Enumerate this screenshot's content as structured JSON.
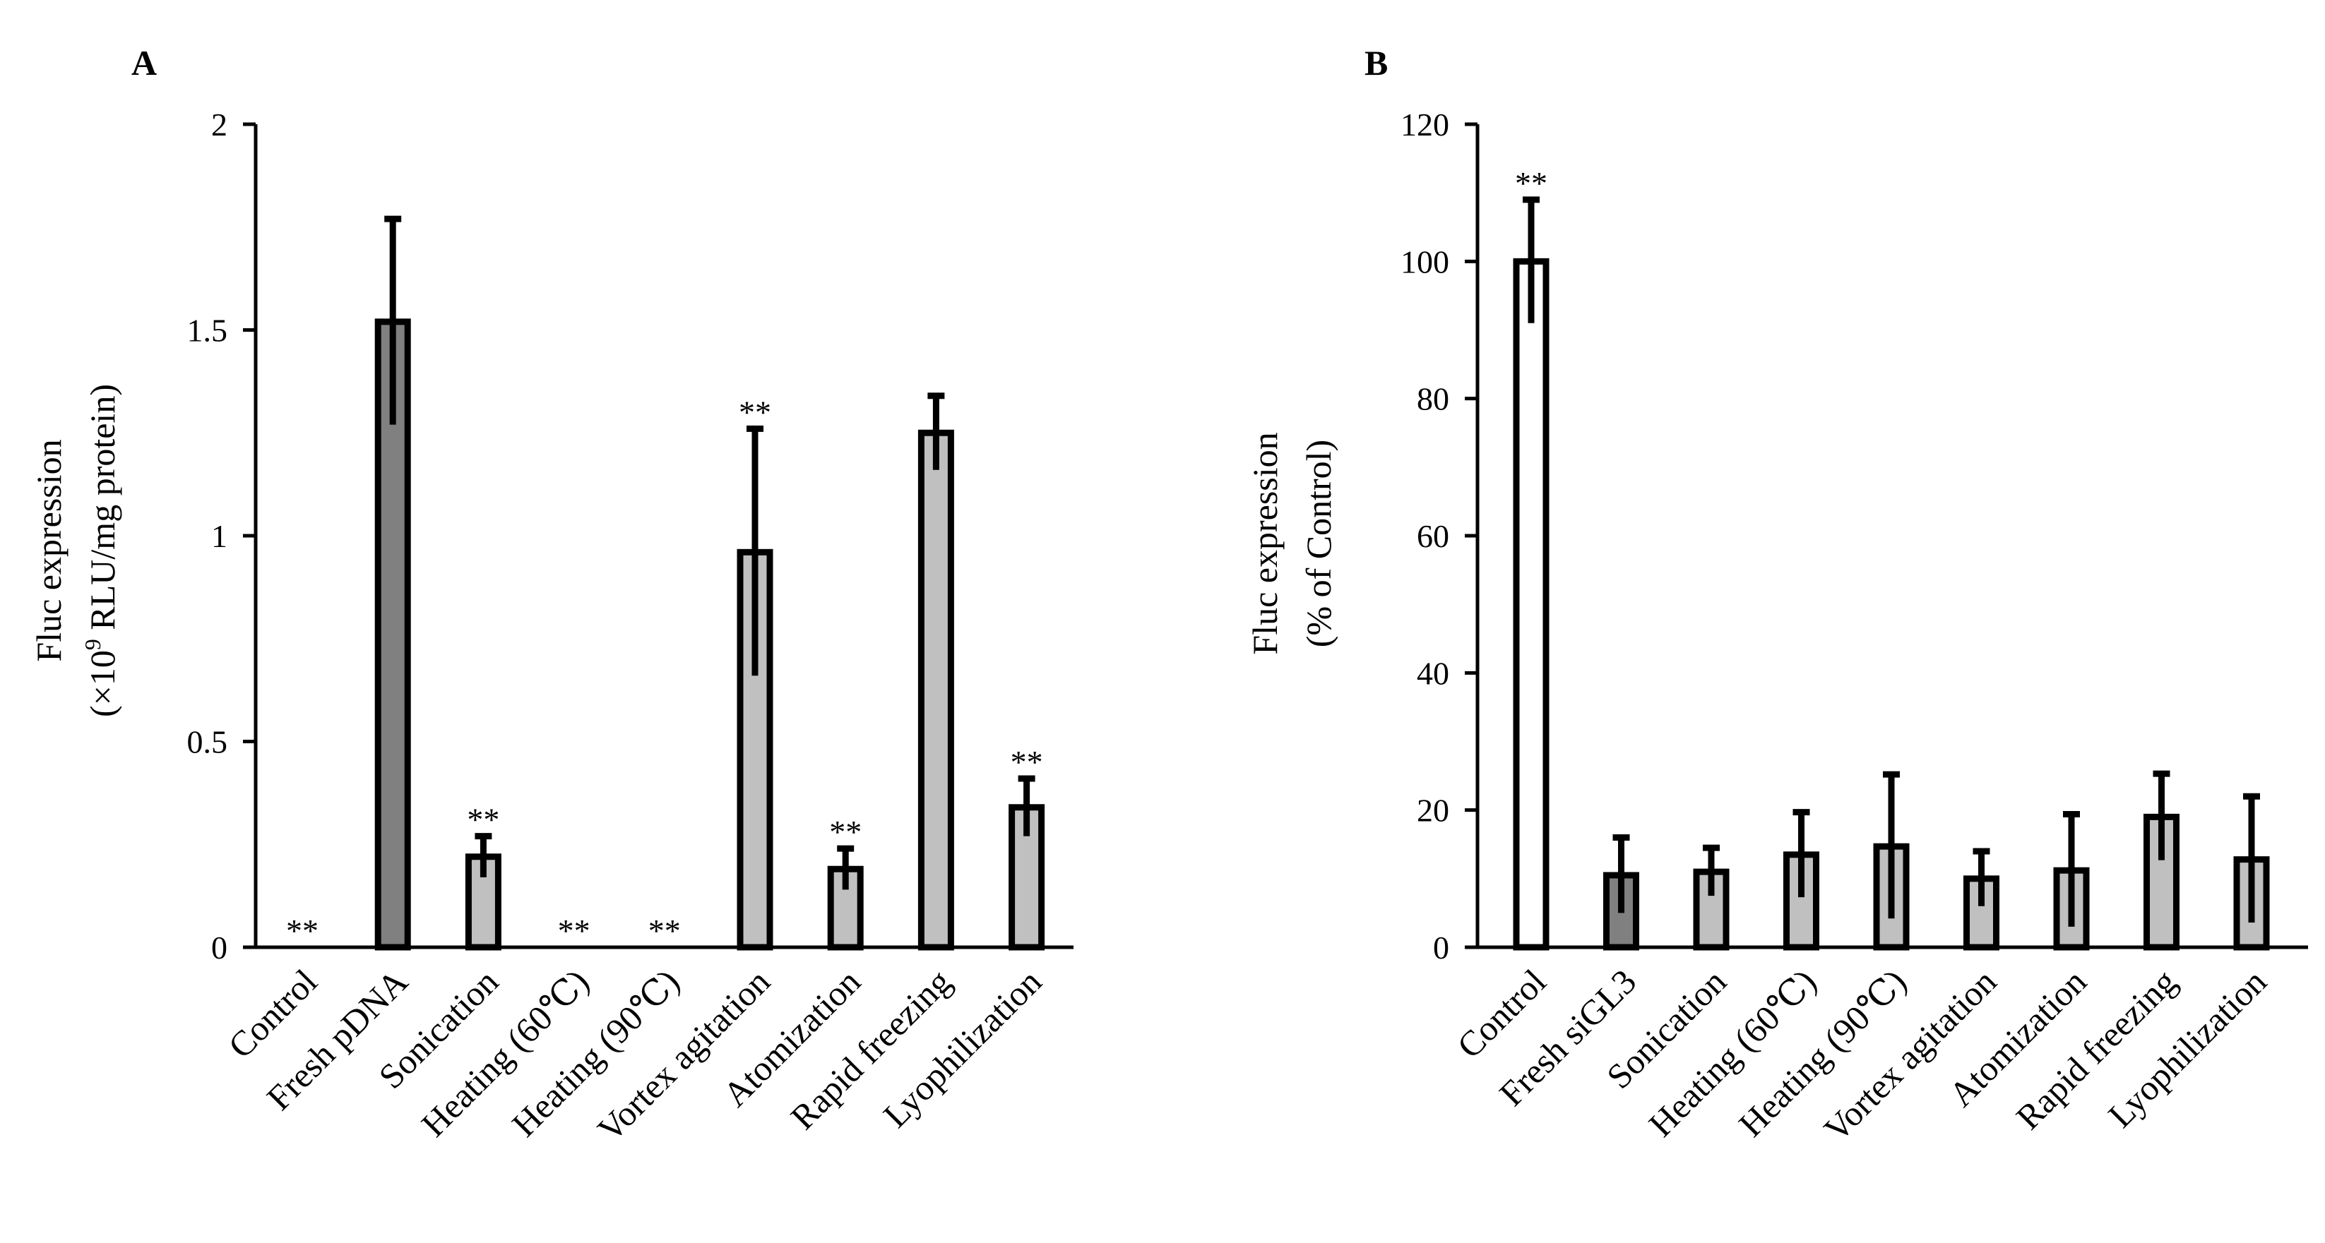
{
  "chart_data": [
    {
      "type": "bar",
      "panel": "A",
      "title": "",
      "xlabel": "",
      "ylabel_line1": "Fluc expression",
      "ylabel_line2_prefix": "(×10",
      "ylabel_line2_sup": "9",
      "ylabel_line2_suffix": " RLU/mg protein)",
      "ylim": [
        0,
        2
      ],
      "yticks": [
        0,
        0.5,
        1,
        1.5,
        2
      ],
      "ytick_labels": [
        "0",
        "0.5",
        "1",
        "1.5",
        "2"
      ],
      "categories": [
        "Control",
        "Fresh pDNA",
        "Sonication",
        "Heating (60℃)",
        "Heating (90℃)",
        "Vortex agitation",
        "Atomization",
        "Rapid freezing",
        "Lyophilization"
      ],
      "values": [
        0.0,
        1.52,
        0.22,
        0.0,
        0.0,
        0.96,
        0.19,
        1.25,
        0.34
      ],
      "errors": [
        0.0,
        0.25,
        0.05,
        0.0,
        0.0,
        0.3,
        0.05,
        0.09,
        0.07
      ],
      "fills": [
        "#ffffff",
        "#808080",
        "#c0c0c0",
        "#c0c0c0",
        "#c0c0c0",
        "#c0c0c0",
        "#c0c0c0",
        "#c0c0c0",
        "#c0c0c0"
      ],
      "significance": [
        "**",
        "",
        "**",
        "**",
        "**",
        "**",
        "**",
        "",
        "**"
      ]
    },
    {
      "type": "bar",
      "panel": "B",
      "title": "",
      "xlabel": "",
      "ylabel_line1": "Fluc expression",
      "ylabel_line2": "(% of Control)",
      "ylim": [
        0,
        120
      ],
      "yticks": [
        0,
        20,
        40,
        60,
        80,
        100,
        120
      ],
      "ytick_labels": [
        "0",
        "20",
        "40",
        "60",
        "80",
        "100",
        "120"
      ],
      "categories": [
        "Control",
        "Fresh siGL3",
        "Sonication",
        "Heating (60℃)",
        "Heating (90℃)",
        "Vortex agitation",
        "Atomization",
        "Rapid freezing",
        "Lyophilization"
      ],
      "values": [
        100,
        10.5,
        11,
        13.5,
        14.7,
        10,
        11.2,
        19,
        12.8
      ],
      "errors": [
        9,
        5.5,
        3.5,
        6.2,
        10.5,
        4,
        8.2,
        6.3,
        9.2
      ],
      "fills": [
        "#ffffff",
        "#808080",
        "#c0c0c0",
        "#c0c0c0",
        "#c0c0c0",
        "#c0c0c0",
        "#c0c0c0",
        "#c0c0c0",
        "#c0c0c0"
      ],
      "significance": [
        "**",
        "",
        "",
        "",
        "",
        "",
        "",
        "",
        ""
      ]
    }
  ]
}
